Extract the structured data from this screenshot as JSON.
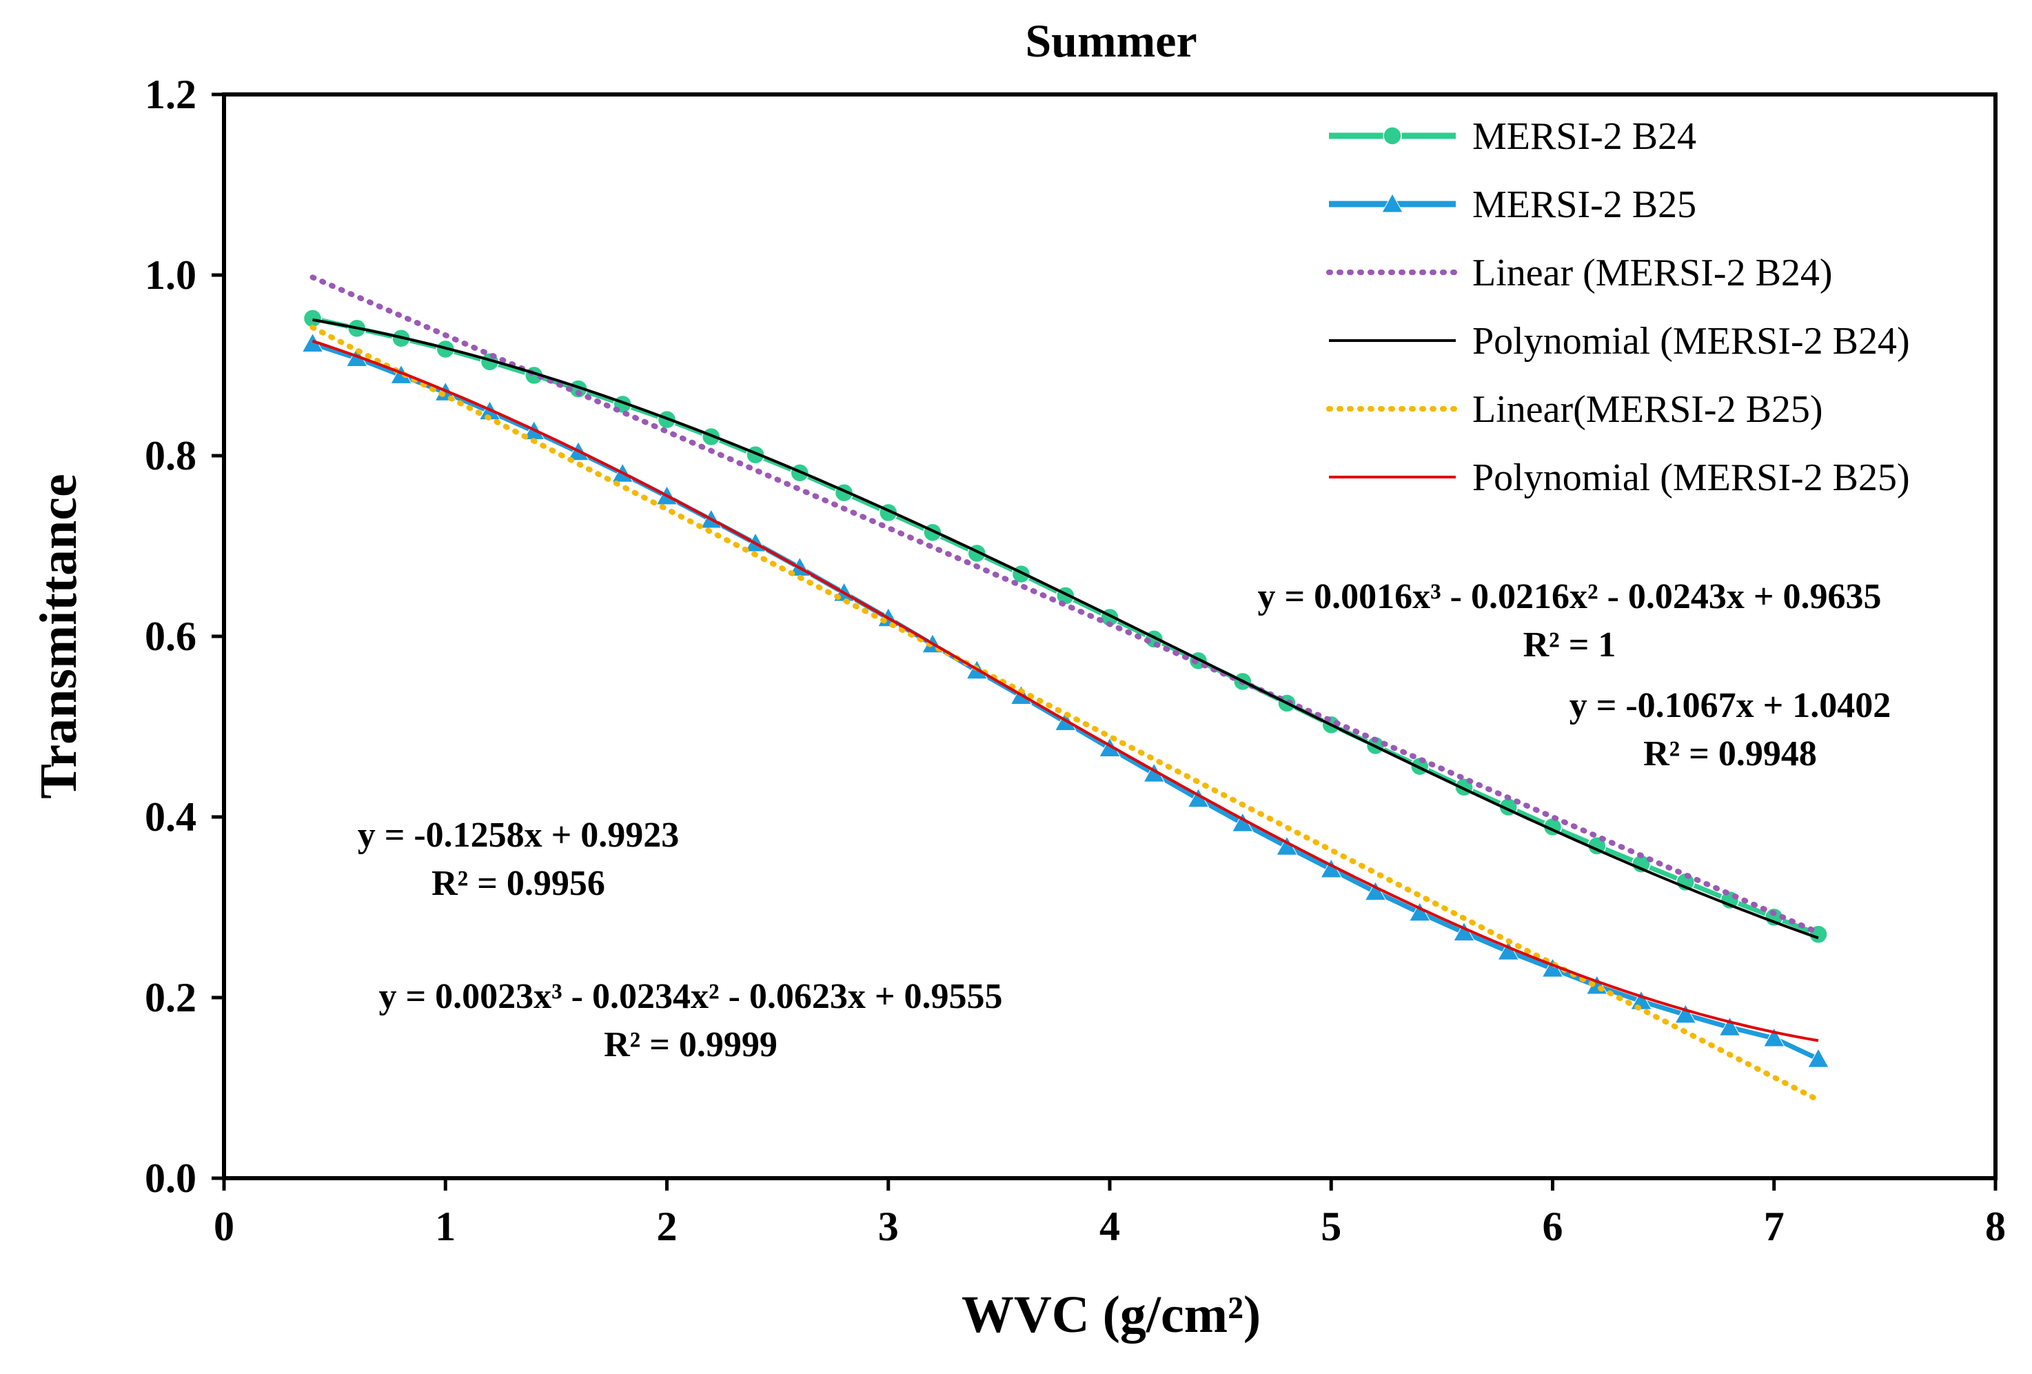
{
  "chart_data": {
    "type": "line",
    "title": "Summer",
    "xlabel": "WVC (g/cm²)",
    "ylabel": "Transmittance",
    "xlim": [
      0,
      8
    ],
    "ylim": [
      0,
      1.2
    ],
    "x_ticks": [
      "0",
      "1",
      "2",
      "3",
      "4",
      "5",
      "6",
      "7",
      "8"
    ],
    "y_ticks": [
      "0.0",
      "0.2",
      "0.4",
      "0.6",
      "0.8",
      "1.0",
      "1.2"
    ],
    "grid": false,
    "legend_position": "top-right",
    "x": [
      0.4,
      0.6,
      0.8,
      1.0,
      1.2,
      1.4,
      1.6,
      1.8,
      2.0,
      2.2,
      2.4,
      2.6,
      2.8,
      3.0,
      3.2,
      3.4,
      3.6,
      3.8,
      4.0,
      4.2,
      4.4,
      4.6,
      4.8,
      5.0,
      5.2,
      5.4,
      5.6,
      5.8,
      6.0,
      6.2,
      6.4,
      6.6,
      6.8,
      7.0,
      7.2
    ],
    "series": [
      {
        "name": "MERSI-2 B24",
        "kind": "data",
        "marker": "circle",
        "color": "#2ecc8f",
        "values": [
          0.952,
          0.941,
          0.93,
          0.918,
          0.904,
          0.889,
          0.874,
          0.857,
          0.84,
          0.821,
          0.801,
          0.781,
          0.759,
          0.737,
          0.715,
          0.692,
          0.669,
          0.645,
          0.621,
          0.597,
          0.573,
          0.55,
          0.526,
          0.502,
          0.479,
          0.456,
          0.433,
          0.411,
          0.389,
          0.368,
          0.348,
          0.328,
          0.308,
          0.289,
          0.27
        ]
      },
      {
        "name": "MERSI-2 B25",
        "kind": "data",
        "marker": "triangle",
        "color": "#1e9bdc",
        "values": [
          0.924,
          0.908,
          0.889,
          0.87,
          0.849,
          0.827,
          0.804,
          0.78,
          0.755,
          0.729,
          0.703,
          0.676,
          0.648,
          0.62,
          0.591,
          0.562,
          0.534,
          0.505,
          0.476,
          0.448,
          0.42,
          0.393,
          0.367,
          0.342,
          0.317,
          0.294,
          0.272,
          0.251,
          0.232,
          0.213,
          0.196,
          0.181,
          0.167,
          0.155,
          0.132
        ]
      },
      {
        "name": "Linear (MERSI-2 B24)",
        "kind": "trend-linear",
        "color": "#9b59b6",
        "coefficients": [
          1.0402,
          -0.1067
        ],
        "x_range": [
          0.4,
          7.2
        ]
      },
      {
        "name": "Polynomial (MERSI-2 B24)",
        "kind": "trend-poly",
        "color": "#000000",
        "coefficients": [
          0.9635,
          -0.0243,
          -0.0216,
          0.0016
        ],
        "x_range": [
          0.4,
          7.2
        ]
      },
      {
        "name": "Linear(MERSI-2 B25)",
        "kind": "trend-linear",
        "color": "#f5b800",
        "coefficients": [
          0.9923,
          -0.1258
        ],
        "x_range": [
          0.4,
          7.2
        ]
      },
      {
        "name": "Polynomial (MERSI-2 B25)",
        "kind": "trend-poly",
        "color": "#e00000",
        "coefficients": [
          0.9555,
          -0.0623,
          -0.0234,
          0.0023
        ],
        "x_range": [
          0.4,
          7.2
        ]
      }
    ],
    "annotations": {
      "b24_poly_eq": "y = 0.0016x³ - 0.0216x² - 0.0243x + 0.9635",
      "b24_poly_r2": "R² = 1",
      "b24_lin_eq": "y = -0.1067x + 1.0402",
      "b24_lin_r2": "R² = 0.9948",
      "b25_lin_eq": "y = -0.1258x + 0.9923",
      "b25_lin_r2": "R² = 0.9956",
      "b25_poly_eq": "y = 0.0023x³ - 0.0234x² - 0.0623x + 0.9555",
      "b25_poly_r2": "R² = 0.9999"
    }
  }
}
